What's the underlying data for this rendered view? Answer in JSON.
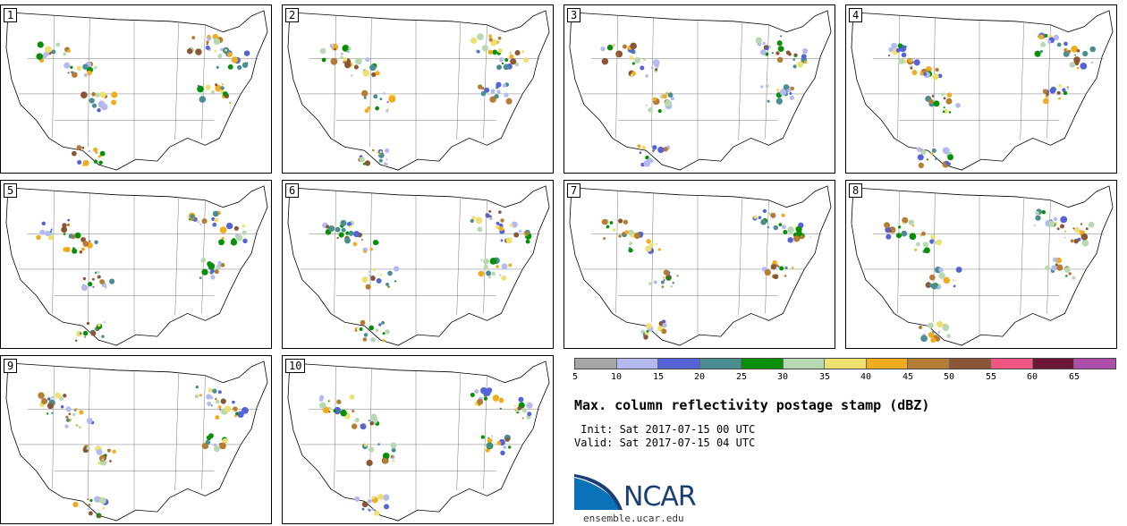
{
  "panels": [
    {
      "label": "1"
    },
    {
      "label": "2"
    },
    {
      "label": "3"
    },
    {
      "label": "4"
    },
    {
      "label": "5"
    },
    {
      "label": "6"
    },
    {
      "label": "7"
    },
    {
      "label": "8"
    },
    {
      "label": "9"
    },
    {
      "label": "10"
    }
  ],
  "colorbar": {
    "colors": [
      "#a6a6a6",
      "#b4b9ef",
      "#5563d6",
      "#4a8e91",
      "#078f08",
      "#b6d9b1",
      "#ede071",
      "#f0ac1f",
      "#b57c33",
      "#8b5635",
      "#ef5782",
      "#6c1638",
      "#ac4eaa"
    ],
    "ticks": [
      "5",
      "10",
      "15",
      "20",
      "25",
      "30",
      "35",
      "40",
      "45",
      "50",
      "55",
      "60",
      "65"
    ]
  },
  "title": "Max. column reflectivity postage stamp (dBZ)",
  "init": " Init: Sat 2017-07-15 00 UTC",
  "valid": "Valid: Sat 2017-07-15 04 UTC",
  "logo": {
    "name": "NCAR",
    "website": "ensemble.ucar.edu"
  }
}
